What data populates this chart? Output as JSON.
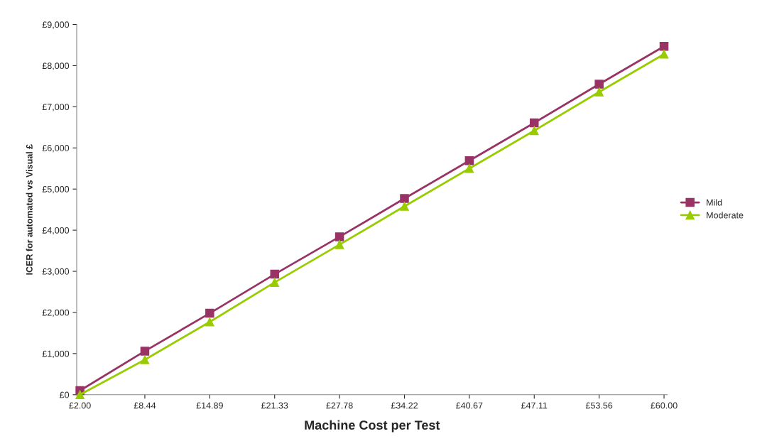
{
  "chart_data": {
    "type": "line",
    "xlabel": "Machine Cost per Test",
    "ylabel": "ICER for automated vs Visual £",
    "categories": [
      "£2.00",
      "£8.44",
      "£14.89",
      "£21.33",
      "£27.78",
      "£34.22",
      "£40.67",
      "£47.11",
      "£53.56",
      "£60.00"
    ],
    "series": [
      {
        "name": "Mild",
        "color": "#993366",
        "marker": "square",
        "values": [
          100,
          1060,
          1980,
          2930,
          3840,
          4770,
          5690,
          6610,
          7550,
          8470
        ]
      },
      {
        "name": "Moderate",
        "color": "#99cc00",
        "marker": "triangle",
        "values": [
          0,
          850,
          1770,
          2730,
          3650,
          4580,
          5500,
          6420,
          7360,
          8280
        ]
      }
    ],
    "ylim": [
      0,
      9000
    ],
    "yticks": [
      {
        "value": 0,
        "label": "£0"
      },
      {
        "value": 1000,
        "label": "£1,000"
      },
      {
        "value": 2000,
        "label": "£2,000"
      },
      {
        "value": 3000,
        "label": "£3,000"
      },
      {
        "value": 4000,
        "label": "£4,000"
      },
      {
        "value": 5000,
        "label": "£5,000"
      },
      {
        "value": 6000,
        "label": "£6,000"
      },
      {
        "value": 7000,
        "label": "£7,000"
      },
      {
        "value": 8000,
        "label": "£8,000"
      },
      {
        "value": 9000,
        "label": "£9,000"
      }
    ],
    "legend": "right",
    "grid": false,
    "line_style": "solid"
  }
}
